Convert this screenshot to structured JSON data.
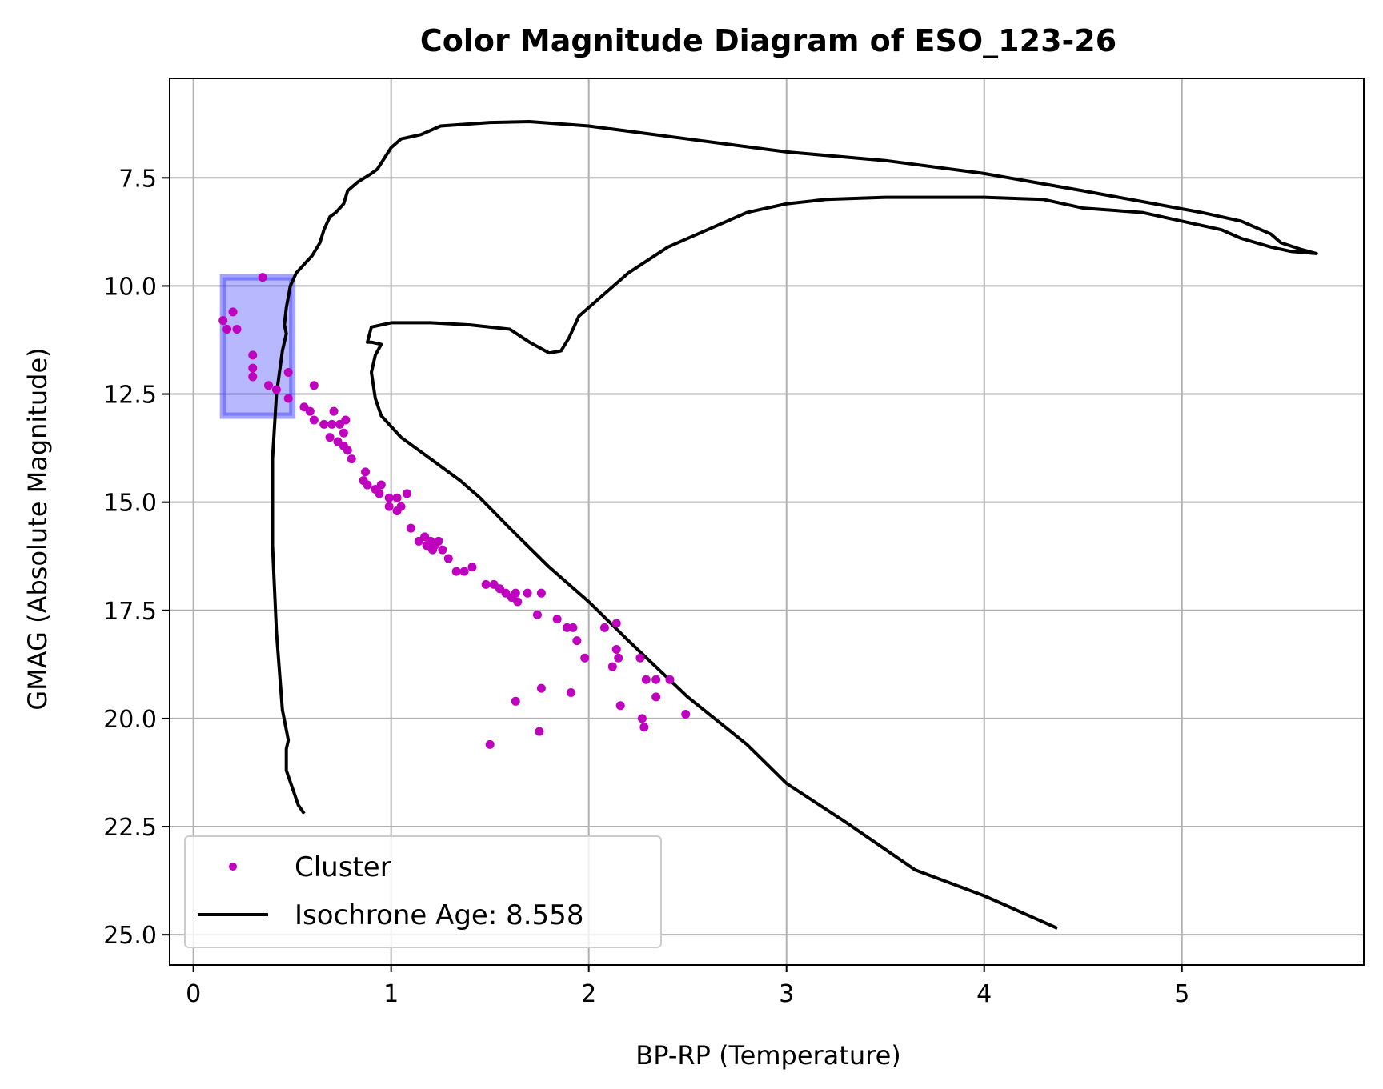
{
  "chart_data": {
    "type": "scatter",
    "title": "Color Magnitude Diagram of ESO_123-26",
    "xlabel": "BP-RP (Temperature)",
    "ylabel": "GMAG (Absolute Magnitude)",
    "xlim": [
      -0.12,
      5.92
    ],
    "ylim": [
      25.7,
      5.2
    ],
    "y_inverted": true,
    "grid": true,
    "legend_position": "lower-left",
    "x_ticks": [
      0,
      1,
      2,
      3,
      4,
      5
    ],
    "x_tick_labels": [
      "0",
      "1",
      "2",
      "3",
      "4",
      "5"
    ],
    "y_ticks": [
      7.5,
      10.0,
      12.5,
      15.0,
      17.5,
      20.0,
      22.5,
      25.0
    ],
    "y_tick_labels": [
      "7.5",
      "10.0",
      "12.5",
      "15.0",
      "17.5",
      "20.0",
      "22.5",
      "25.0"
    ],
    "highlight_box": {
      "x_range": [
        0.15,
        0.5
      ],
      "y_range": [
        9.8,
        13.0
      ],
      "color": "#3333ff"
    },
    "series": [
      {
        "name": "Cluster",
        "kind": "scatter",
        "color": "#bf00bf",
        "points": [
          [
            0.35,
            9.8
          ],
          [
            0.15,
            10.8
          ],
          [
            0.2,
            10.6
          ],
          [
            0.17,
            11.0
          ],
          [
            0.22,
            11.0
          ],
          [
            0.3,
            11.6
          ],
          [
            0.3,
            11.9
          ],
          [
            0.3,
            12.1
          ],
          [
            0.48,
            12.0
          ],
          [
            0.38,
            12.3
          ],
          [
            0.42,
            12.4
          ],
          [
            0.48,
            12.6
          ],
          [
            0.61,
            12.3
          ],
          [
            0.56,
            12.8
          ],
          [
            0.59,
            12.9
          ],
          [
            0.61,
            13.1
          ],
          [
            0.66,
            13.2
          ],
          [
            0.7,
            13.2
          ],
          [
            0.71,
            12.9
          ],
          [
            0.74,
            13.2
          ],
          [
            0.77,
            13.1
          ],
          [
            0.69,
            13.5
          ],
          [
            0.73,
            13.6
          ],
          [
            0.76,
            13.4
          ],
          [
            0.76,
            13.7
          ],
          [
            0.78,
            13.8
          ],
          [
            0.8,
            14.0
          ],
          [
            0.87,
            14.3
          ],
          [
            0.86,
            14.5
          ],
          [
            0.88,
            14.6
          ],
          [
            0.92,
            14.7
          ],
          [
            0.95,
            14.6
          ],
          [
            0.94,
            14.8
          ],
          [
            0.99,
            14.9
          ],
          [
            1.03,
            14.9
          ],
          [
            1.08,
            14.8
          ],
          [
            0.99,
            15.1
          ],
          [
            1.03,
            15.2
          ],
          [
            1.05,
            15.1
          ],
          [
            1.1,
            15.6
          ],
          [
            1.14,
            15.9
          ],
          [
            1.17,
            15.8
          ],
          [
            1.18,
            16.0
          ],
          [
            1.2,
            15.9
          ],
          [
            1.22,
            16.0
          ],
          [
            1.24,
            15.9
          ],
          [
            1.21,
            16.1
          ],
          [
            1.26,
            16.1
          ],
          [
            1.29,
            16.3
          ],
          [
            1.33,
            16.6
          ],
          [
            1.37,
            16.6
          ],
          [
            1.41,
            16.5
          ],
          [
            1.48,
            16.9
          ],
          [
            1.52,
            16.9
          ],
          [
            1.55,
            17.0
          ],
          [
            1.58,
            17.1
          ],
          [
            1.61,
            17.2
          ],
          [
            1.63,
            17.1
          ],
          [
            1.64,
            17.3
          ],
          [
            1.69,
            17.1
          ],
          [
            1.76,
            17.1
          ],
          [
            1.74,
            17.6
          ],
          [
            1.84,
            17.7
          ],
          [
            1.89,
            17.9
          ],
          [
            1.92,
            17.9
          ],
          [
            1.94,
            18.2
          ],
          [
            1.98,
            18.6
          ],
          [
            2.08,
            17.9
          ],
          [
            2.14,
            17.8
          ],
          [
            2.14,
            18.4
          ],
          [
            2.15,
            18.6
          ],
          [
            2.12,
            18.8
          ],
          [
            2.26,
            18.6
          ],
          [
            2.29,
            19.1
          ],
          [
            2.34,
            19.1
          ],
          [
            2.41,
            19.1
          ],
          [
            2.34,
            19.5
          ],
          [
            1.76,
            19.3
          ],
          [
            1.91,
            19.4
          ],
          [
            1.63,
            19.6
          ],
          [
            2.16,
            19.7
          ],
          [
            2.49,
            19.9
          ],
          [
            2.27,
            20.0
          ],
          [
            2.28,
            20.2
          ],
          [
            1.75,
            20.3
          ],
          [
            1.5,
            20.6
          ]
        ]
      },
      {
        "name": "Isochrone Age: 8.558",
        "kind": "line",
        "color": "#000000",
        "points": [
          [
            0.56,
            22.2
          ],
          [
            0.53,
            22.0
          ],
          [
            0.5,
            21.6
          ],
          [
            0.47,
            21.2
          ],
          [
            0.47,
            20.7
          ],
          [
            0.48,
            20.5
          ],
          [
            0.45,
            19.8
          ],
          [
            0.42,
            18.0
          ],
          [
            0.4,
            16.0
          ],
          [
            0.4,
            14.0
          ],
          [
            0.42,
            12.5
          ],
          [
            0.45,
            11.5
          ],
          [
            0.47,
            11.1
          ],
          [
            0.46,
            10.9
          ],
          [
            0.47,
            10.5
          ],
          [
            0.49,
            10.0
          ],
          [
            0.52,
            9.7
          ],
          [
            0.58,
            9.4
          ],
          [
            0.6,
            9.3
          ],
          [
            0.64,
            9.0
          ],
          [
            0.66,
            8.7
          ],
          [
            0.68,
            8.5
          ],
          [
            0.69,
            8.4
          ],
          [
            0.72,
            8.3
          ],
          [
            0.76,
            8.1
          ],
          [
            0.78,
            7.8
          ],
          [
            0.83,
            7.6
          ],
          [
            0.9,
            7.4
          ],
          [
            0.93,
            7.3
          ],
          [
            1.0,
            6.8
          ],
          [
            1.05,
            6.6
          ],
          [
            1.1,
            6.55
          ],
          [
            1.15,
            6.5
          ],
          [
            1.2,
            6.4
          ],
          [
            1.25,
            6.3
          ],
          [
            1.5,
            6.22
          ],
          [
            1.7,
            6.2
          ],
          [
            2.0,
            6.3
          ],
          [
            2.5,
            6.6
          ],
          [
            3.0,
            6.9
          ],
          [
            3.5,
            7.1
          ],
          [
            4.0,
            7.4
          ],
          [
            4.5,
            7.8
          ],
          [
            4.8,
            8.05
          ],
          [
            5.1,
            8.3
          ],
          [
            5.3,
            8.5
          ],
          [
            5.4,
            8.7
          ],
          [
            5.45,
            8.8
          ],
          [
            5.5,
            9.0
          ],
          [
            5.6,
            9.15
          ],
          [
            5.68,
            9.25
          ],
          [
            5.55,
            9.2
          ],
          [
            5.45,
            9.1
          ],
          [
            5.3,
            8.9
          ],
          [
            5.2,
            8.7
          ],
          [
            5.0,
            8.5
          ],
          [
            4.8,
            8.3
          ],
          [
            4.5,
            8.2
          ],
          [
            4.3,
            8.0
          ],
          [
            4.0,
            7.95
          ],
          [
            3.5,
            7.95
          ],
          [
            3.2,
            8.0
          ],
          [
            3.0,
            8.1
          ],
          [
            2.8,
            8.3
          ],
          [
            2.6,
            8.7
          ],
          [
            2.4,
            9.1
          ],
          [
            2.2,
            9.7
          ],
          [
            2.05,
            10.3
          ],
          [
            1.95,
            10.7
          ],
          [
            1.9,
            11.2
          ],
          [
            1.86,
            11.5
          ],
          [
            1.8,
            11.55
          ],
          [
            1.7,
            11.3
          ],
          [
            1.6,
            11.0
          ],
          [
            1.4,
            10.9
          ],
          [
            1.2,
            10.85
          ],
          [
            1.0,
            10.85
          ],
          [
            0.9,
            10.95
          ],
          [
            0.88,
            11.3
          ],
          [
            0.9,
            11.3
          ],
          [
            0.95,
            11.35
          ],
          [
            0.92,
            11.6
          ],
          [
            0.9,
            12.0
          ],
          [
            0.92,
            12.6
          ],
          [
            0.95,
            13.0
          ],
          [
            1.05,
            13.5
          ],
          [
            1.2,
            14.0
          ],
          [
            1.35,
            14.5
          ],
          [
            1.45,
            14.9
          ],
          [
            1.6,
            15.6
          ],
          [
            1.8,
            16.5
          ],
          [
            2.0,
            17.3
          ],
          [
            2.2,
            18.2
          ],
          [
            2.5,
            19.5
          ],
          [
            2.8,
            20.6
          ],
          [
            3.0,
            21.5
          ],
          [
            3.3,
            22.4
          ],
          [
            3.65,
            23.5
          ],
          [
            4.0,
            24.1
          ],
          [
            4.37,
            24.85
          ]
        ]
      }
    ]
  }
}
